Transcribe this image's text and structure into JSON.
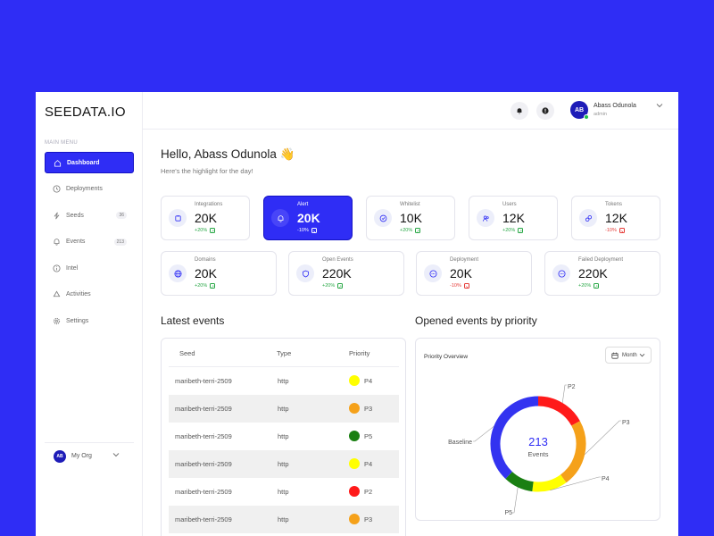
{
  "app": {
    "logo": "SEEDATA.IO"
  },
  "sidebar": {
    "menu_label": "MAIN MENU",
    "items": [
      {
        "label": "Dashboard",
        "icon": "home-icon",
        "active": true,
        "badge": ""
      },
      {
        "label": "Deployments",
        "icon": "clock-icon",
        "active": false,
        "badge": ""
      },
      {
        "label": "Seeds",
        "icon": "bolt-icon",
        "active": false,
        "badge": "36"
      },
      {
        "label": "Events",
        "icon": "bell-icon",
        "active": false,
        "badge": "213"
      },
      {
        "label": "Intel",
        "icon": "info-icon",
        "active": false,
        "badge": ""
      },
      {
        "label": "Activities",
        "icon": "recycle-icon",
        "active": false,
        "badge": ""
      },
      {
        "label": "Settings",
        "icon": "gear-icon",
        "active": false,
        "badge": ""
      }
    ],
    "org": {
      "avatar": "AB",
      "label": "My Org"
    }
  },
  "topbar": {
    "user": {
      "avatar": "AB",
      "name": "Abass Odunola",
      "role": "admin"
    }
  },
  "greeting": {
    "title": "Hello, Abass Odunola 👋",
    "subtitle": "Here's the highlight for the day!"
  },
  "stats_row1": [
    {
      "label": "Integrations",
      "value": "20K",
      "change": "+20%",
      "trend": "up",
      "icon": "puzzle-icon",
      "active": false
    },
    {
      "label": "Alert",
      "value": "20K",
      "change": "-10%",
      "trend": "down",
      "icon": "bell-icon",
      "active": true
    },
    {
      "label": "Whitelist",
      "value": "10K",
      "change": "+20%",
      "trend": "up",
      "icon": "shield-check-icon",
      "active": false
    },
    {
      "label": "Users",
      "value": "12K",
      "change": "+20%",
      "trend": "up",
      "icon": "users-icon",
      "active": false
    },
    {
      "label": "Tokens",
      "value": "12K",
      "change": "-10%",
      "trend": "down",
      "icon": "token-icon",
      "active": false
    }
  ],
  "stats_row2": [
    {
      "label": "Domains",
      "value": "20K",
      "change": "+20%",
      "trend": "up",
      "icon": "globe-icon"
    },
    {
      "label": "Open Events",
      "value": "220K",
      "change": "+20%",
      "trend": "up",
      "icon": "shield-icon"
    },
    {
      "label": "Deployment",
      "value": "20K",
      "change": "-10%",
      "trend": "down",
      "icon": "dots-circle-icon"
    },
    {
      "label": "Failed Deployment",
      "value": "220K",
      "change": "+20%",
      "trend": "up",
      "icon": "dots-circle-icon"
    }
  ],
  "latest_events": {
    "title": "Latest events",
    "columns": [
      "Seed",
      "Type",
      "Priority"
    ],
    "rows": [
      {
        "seed": "maribeth-terri-2509",
        "type": "http",
        "priority": "P4",
        "color": "#ffff00"
      },
      {
        "seed": "maribeth-terri-2509",
        "type": "http",
        "priority": "P3",
        "color": "#f5a11a"
      },
      {
        "seed": "maribeth-terri-2509",
        "type": "http",
        "priority": "P5",
        "color": "#1a7f12"
      },
      {
        "seed": "maribeth-terri-2509",
        "type": "http",
        "priority": "P4",
        "color": "#ffff00"
      },
      {
        "seed": "maribeth-terri-2509",
        "type": "http",
        "priority": "P2",
        "color": "#ff1a1a"
      },
      {
        "seed": "maribeth-terri-2509",
        "type": "http",
        "priority": "P3",
        "color": "#f5a11a"
      }
    ]
  },
  "priority_chart": {
    "title": "Opened events by priority",
    "card_title": "Priority Overview",
    "period": "Month",
    "center_value": "213",
    "center_label": "Events"
  },
  "chart_data": {
    "type": "pie",
    "title": "Opened events by priority",
    "categories": [
      "P2",
      "P3",
      "P4",
      "P5",
      "Baseline"
    ],
    "values": [
      17,
      23,
      12,
      10,
      38
    ],
    "colors": [
      "#ff1a1a",
      "#f5a11a",
      "#ffff00",
      "#1a7f12",
      "#3333f0"
    ],
    "total": 213
  }
}
